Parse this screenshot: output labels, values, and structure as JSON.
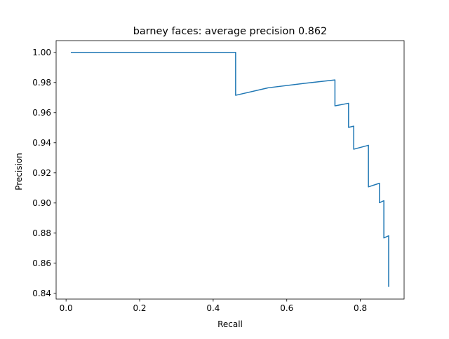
{
  "chart_data": {
    "type": "line",
    "title": "barney faces: average precision 0.862",
    "xlabel": "Recall",
    "ylabel": "Precision",
    "xlim": [
      -0.027,
      0.919
    ],
    "ylim": [
      0.8362,
      1.0078
    ],
    "xticks": [
      0.0,
      0.2,
      0.4,
      0.6,
      0.8
    ],
    "xtick_labels": [
      "0.0",
      "0.2",
      "0.4",
      "0.6",
      "0.8"
    ],
    "yticks": [
      0.84,
      0.86,
      0.88,
      0.9,
      0.92,
      0.94,
      0.96,
      0.98,
      1.0
    ],
    "ytick_labels": [
      "0.84",
      "0.86",
      "0.88",
      "0.90",
      "0.92",
      "0.94",
      "0.96",
      "0.98",
      "1.00"
    ],
    "grid": false,
    "legend": "none",
    "series": [
      {
        "color": "#1f77b4",
        "x": [
          0.013,
          0.461,
          0.461,
          0.55,
          0.65,
          0.731,
          0.731,
          0.768,
          0.768,
          0.782,
          0.782,
          0.822,
          0.822,
          0.852,
          0.852,
          0.864,
          0.864,
          0.877,
          0.877
        ],
        "y": [
          1.0,
          1.0,
          0.9715,
          0.9765,
          0.9795,
          0.9817,
          0.9645,
          0.9662,
          0.9502,
          0.951,
          0.9357,
          0.9383,
          0.9107,
          0.9131,
          0.9002,
          0.9015,
          0.8768,
          0.8782,
          0.8443
        ]
      }
    ]
  }
}
